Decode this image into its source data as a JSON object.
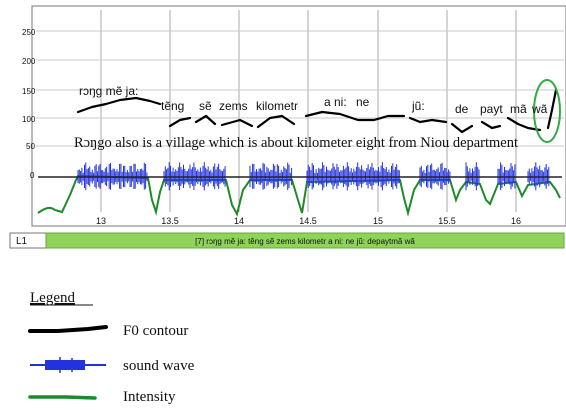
{
  "y_ticks": [
    "250",
    "200",
    "150",
    "100",
    "50",
    "0"
  ],
  "x_ticks": [
    "13",
    "13.5",
    "14",
    "14.5",
    "15",
    "15.5",
    "16"
  ],
  "ipa_words": [
    "rɔŋg mẽ ja:",
    "tẽng",
    "sẽ",
    "zems",
    "kilometr",
    "a ni:",
    "ne",
    "jũ:",
    "de",
    "payt",
    "mã",
    "wã"
  ],
  "gloss": "Rɔŋgo also is a village which is about kilometer eight from Niou  department",
  "tier": {
    "label": "L1",
    "text": "[7] rɔŋg mẽ ja: tẽng sẽ  zems kilometr a ni:  ne jũ: depaytmã wã"
  },
  "legend": {
    "title": "Legend",
    "items": [
      {
        "label": "F0 contour",
        "color": "#000000"
      },
      {
        "label": "sound wave",
        "color": "#2233dd"
      },
      {
        "label": "Intensity",
        "color": "#1f8a2a"
      }
    ]
  },
  "colors": {
    "f0": "#000000",
    "wave": "#2233dd",
    "intensity": "#1f8a2a",
    "tier_fill": "#8fd35a",
    "highlight_circle": "#33aa44",
    "grid": "#9e9e9e"
  }
}
